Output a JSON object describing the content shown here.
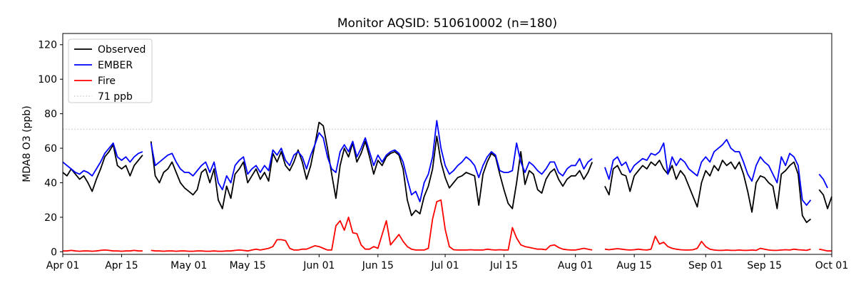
{
  "chart_data": {
    "type": "line",
    "title": "Monitor AQSID: 510610002 (n=180)",
    "ylabel": "MDA8 O3 (ppb)",
    "xlabel": "",
    "x_start_label": "Apr 01",
    "x_end_label": "Oct 01",
    "xlim": [
      0,
      183
    ],
    "ylim": [
      -1.5,
      126.5
    ],
    "grid": false,
    "legend_position": "upper-left",
    "y_ticks": [
      0,
      20,
      40,
      60,
      80,
      100,
      120
    ],
    "x_ticks": [
      {
        "day": 0,
        "label": "Apr 01"
      },
      {
        "day": 14,
        "label": "Apr 15"
      },
      {
        "day": 30,
        "label": "May 01"
      },
      {
        "day": 44,
        "label": "May 15"
      },
      {
        "day": 61,
        "label": "Jun 01"
      },
      {
        "day": 75,
        "label": "Jun 15"
      },
      {
        "day": 91,
        "label": "Jul 01"
      },
      {
        "day": 105,
        "label": "Jul 15"
      },
      {
        "day": 122,
        "label": "Aug 01"
      },
      {
        "day": 136,
        "label": "Aug 15"
      },
      {
        "day": 153,
        "label": "Sep 01"
      },
      {
        "day": 167,
        "label": "Sep 15"
      },
      {
        "day": 183,
        "label": "Oct 01"
      }
    ],
    "threshold": {
      "value": 71,
      "label": "71 ppb",
      "color": "#c8c8c8",
      "style": "dotted"
    },
    "legend_items": [
      {
        "label": "Observed",
        "color": "#000000",
        "dash": "solid"
      },
      {
        "label": "EMBER",
        "color": "#0000ff",
        "dash": "solid"
      },
      {
        "label": "Fire",
        "color": "#ff0000",
        "dash": "solid"
      },
      {
        "label": "71 ppb",
        "color": "#c8c8c8",
        "dash": "dotted"
      }
    ],
    "series": [
      {
        "name": "Observed",
        "color": "#000000",
        "values": [
          46,
          44,
          48,
          45,
          42,
          44,
          40,
          35,
          42,
          48,
          55,
          58,
          62,
          50,
          48,
          50,
          44,
          50,
          53,
          56,
          null,
          64,
          44,
          40,
          46,
          48,
          52,
          46,
          40,
          37,
          35,
          33,
          36,
          46,
          48,
          40,
          48,
          30,
          25,
          38,
          31,
          45,
          48,
          52,
          40,
          44,
          48,
          42,
          46,
          41,
          57,
          52,
          58,
          50,
          47,
          52,
          59,
          52,
          42,
          50,
          62,
          75,
          73,
          60,
          45,
          31,
          50,
          60,
          55,
          63,
          52,
          57,
          64,
          55,
          45,
          53,
          50,
          55,
          57,
          58,
          56,
          48,
          30,
          21,
          24,
          22,
          32,
          38,
          48,
          67,
          52,
          43,
          37,
          40,
          43,
          44,
          46,
          45,
          44,
          27,
          45,
          52,
          57,
          55,
          45,
          36,
          28,
          25,
          40,
          58,
          39,
          47,
          45,
          36,
          34,
          42,
          46,
          48,
          42,
          38,
          42,
          44,
          44,
          47,
          42,
          46,
          52,
          null,
          null,
          38,
          33,
          48,
          50,
          45,
          44,
          35,
          44,
          47,
          50,
          48,
          52,
          50,
          53,
          48,
          45,
          50,
          42,
          47,
          44,
          38,
          32,
          26,
          40,
          47,
          44,
          50,
          47,
          53,
          50,
          52,
          48,
          52,
          45,
          35,
          23,
          40,
          44,
          43,
          40,
          38,
          25,
          45,
          47,
          50,
          52,
          45,
          21,
          17,
          19,
          null,
          36,
          33,
          25,
          32
        ]
      },
      {
        "name": "EMBER",
        "color": "#0000ff",
        "values": [
          52,
          50,
          48,
          46,
          45,
          47,
          46,
          44,
          48,
          52,
          57,
          60,
          63,
          55,
          53,
          55,
          52,
          55,
          57,
          58,
          null,
          63,
          50,
          52,
          54,
          56,
          57,
          52,
          48,
          46,
          46,
          44,
          47,
          50,
          52,
          46,
          52,
          40,
          36,
          44,
          40,
          50,
          53,
          55,
          45,
          48,
          50,
          46,
          50,
          47,
          59,
          56,
          60,
          53,
          50,
          56,
          58,
          55,
          48,
          56,
          62,
          69,
          66,
          55,
          48,
          46,
          58,
          62,
          58,
          64,
          55,
          60,
          66,
          58,
          50,
          56,
          52,
          56,
          58,
          59,
          57,
          52,
          42,
          33,
          35,
          29,
          40,
          45,
          55,
          76,
          60,
          50,
          45,
          47,
          50,
          52,
          55,
          53,
          50,
          43,
          50,
          55,
          58,
          56,
          47,
          46,
          46,
          47,
          63,
          52,
          46,
          52,
          50,
          47,
          45,
          48,
          52,
          52,
          46,
          44,
          48,
          50,
          50,
          54,
          48,
          52,
          54,
          null,
          null,
          49,
          42,
          53,
          55,
          50,
          52,
          46,
          50,
          52,
          54,
          53,
          57,
          56,
          58,
          63,
          45,
          55,
          50,
          54,
          52,
          48,
          46,
          44,
          52,
          55,
          52,
          58,
          60,
          62,
          65,
          60,
          58,
          58,
          52,
          45,
          41,
          50,
          55,
          52,
          50,
          45,
          40,
          55,
          50,
          57,
          55,
          50,
          30,
          27,
          30,
          null,
          45,
          42,
          37,
          null
        ]
      },
      {
        "name": "Fire",
        "color": "#ff0000",
        "values": [
          0.5,
          0.5,
          0.8,
          0.5,
          0.3,
          0.5,
          0.5,
          0.3,
          0.5,
          0.8,
          1,
          0.8,
          0.5,
          0.5,
          0.3,
          0.5,
          0.5,
          0.8,
          0.5,
          0.5,
          null,
          0.8,
          0.5,
          0.5,
          0.3,
          0.5,
          0.5,
          0.3,
          0.5,
          0.5,
          0.3,
          0.3,
          0.5,
          0.5,
          0.3,
          0.3,
          0.5,
          0.3,
          0.3,
          0.5,
          0.5,
          0.8,
          1,
          0.8,
          0.5,
          1,
          1.5,
          1,
          1.5,
          2,
          3,
          7,
          7,
          6.5,
          2,
          1,
          1,
          1.5,
          1.5,
          2.5,
          3.5,
          3,
          2,
          1,
          1,
          15,
          18,
          12.5,
          20,
          11,
          10.5,
          4,
          1.5,
          1.5,
          3,
          2,
          10,
          18,
          4,
          7,
          10,
          6,
          3,
          1.5,
          1,
          1,
          1,
          2,
          19,
          29,
          30,
          13,
          3,
          1.2,
          1,
          1,
          1,
          1.2,
          1,
          1,
          1,
          1.5,
          1.2,
          1,
          1.2,
          1,
          1,
          14,
          8,
          4,
          3,
          2.5,
          2,
          1.5,
          1.5,
          1.2,
          3.5,
          4,
          2.5,
          1.5,
          1.2,
          1,
          1,
          1.5,
          2,
          1.5,
          1,
          null,
          null,
          1.5,
          1.2,
          1.5,
          1.8,
          1.5,
          1.2,
          1,
          1.2,
          1.5,
          1.2,
          1,
          1.5,
          9,
          4.5,
          5.5,
          3,
          2,
          1.5,
          1.2,
          1,
          1,
          1.2,
          2,
          6,
          3,
          1.5,
          1,
          0.8,
          0.8,
          1,
          0.8,
          0.8,
          1,
          0.8,
          0.8,
          1,
          0.8,
          2,
          1.5,
          1,
          0.8,
          0.8,
          1,
          1.2,
          1,
          1.5,
          1.2,
          1,
          0.8,
          1.5,
          null,
          1.5,
          1,
          0.5,
          0.5
        ]
      }
    ]
  }
}
